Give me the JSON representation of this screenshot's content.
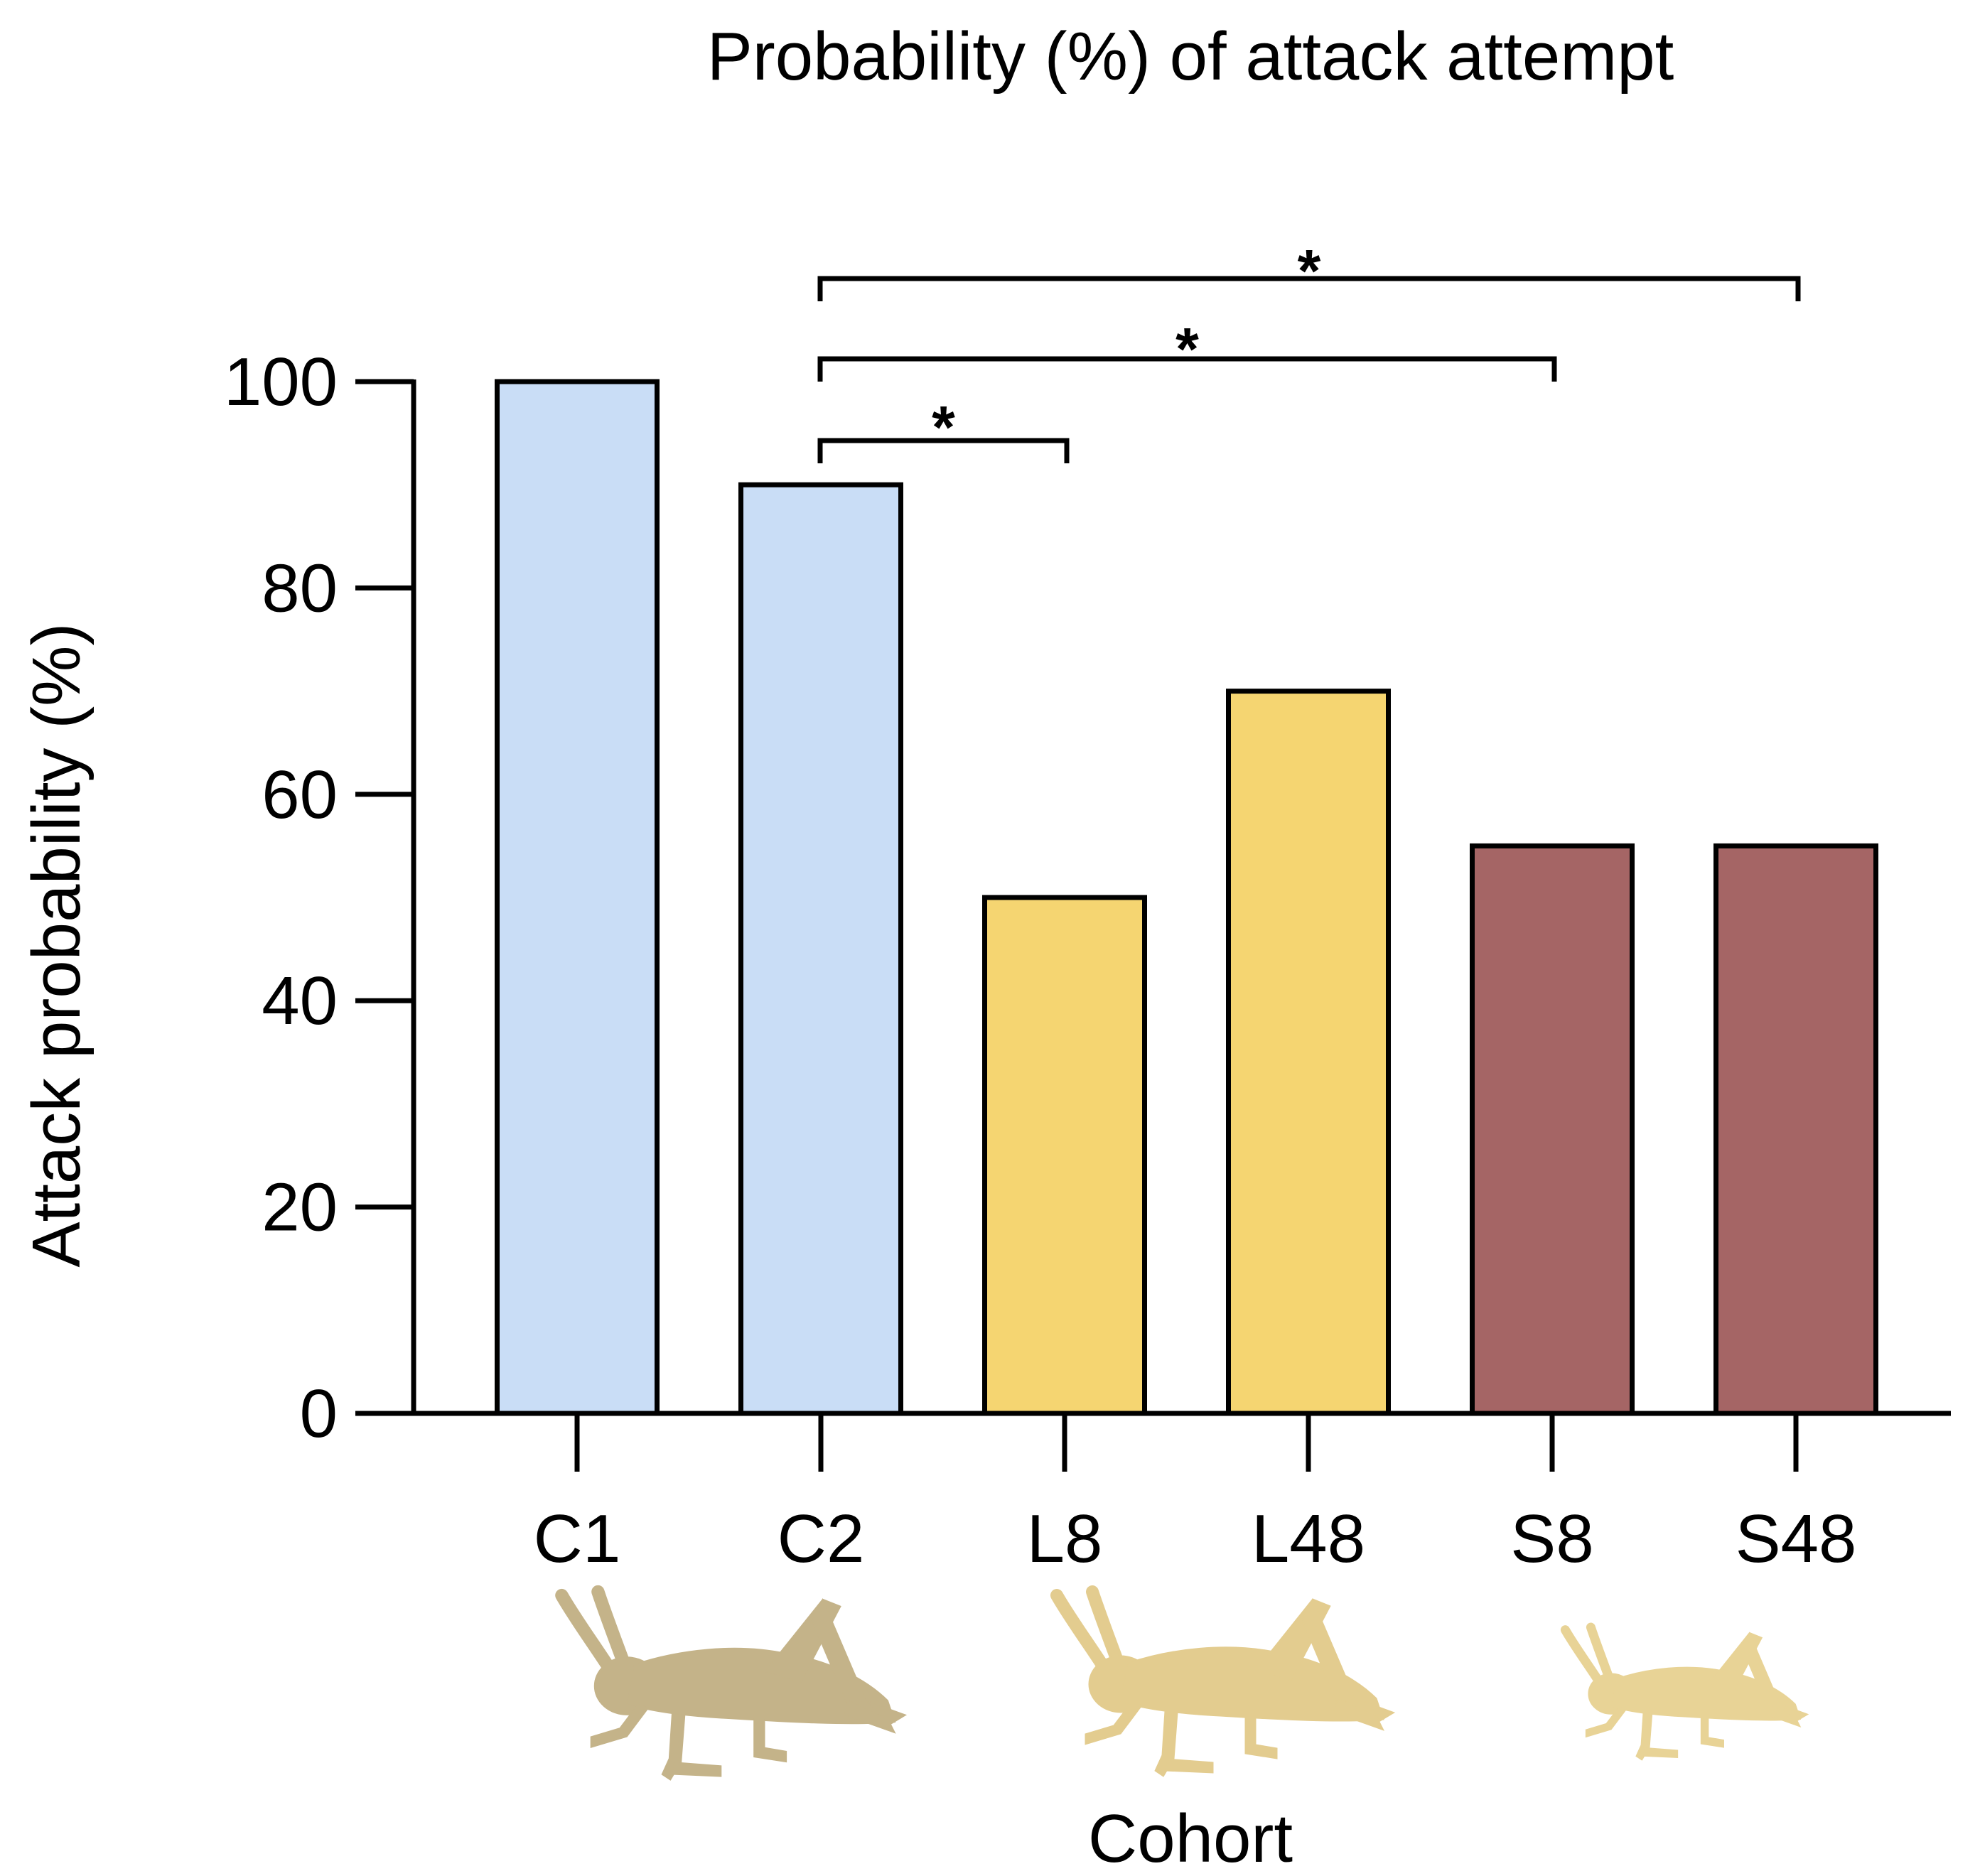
{
  "chart_data": {
    "type": "bar",
    "title": "Probability (%) of attack attempt",
    "xlabel": "Cohort",
    "ylabel": "Attack probability (%)",
    "ylim": [
      0,
      100
    ],
    "yticks": [
      0,
      20,
      40,
      60,
      80,
      100
    ],
    "ytick_labels": [
      "0",
      "20",
      "40",
      "60",
      "80",
      "100"
    ],
    "grid": false,
    "legend": "none",
    "categories": [
      "C1",
      "C2",
      "L8",
      "L48",
      "S8",
      "S48"
    ],
    "values": [
      100,
      90,
      50,
      70,
      55,
      55
    ],
    "bar_colors": [
      "#c9ddf6",
      "#c9ddf6",
      "#f5d571",
      "#f5d571",
      "#a56565",
      "#a56565"
    ],
    "significance": [
      {
        "from": "C2",
        "to": "L8",
        "label": "*"
      },
      {
        "from": "C2",
        "to": "S8",
        "label": "*"
      },
      {
        "from": "C2",
        "to": "S48",
        "label": "*"
      }
    ],
    "icons": [
      {
        "name": "cricket-icon",
        "under": [
          "C1",
          "C2"
        ],
        "color": "#c4b389"
      },
      {
        "name": "cricket-icon",
        "under": [
          "L8",
          "L48"
        ],
        "color": "#e3cc8f"
      },
      {
        "name": "cricket-icon",
        "under": [
          "S8",
          "S48"
        ],
        "color": "#e8d396"
      }
    ]
  }
}
